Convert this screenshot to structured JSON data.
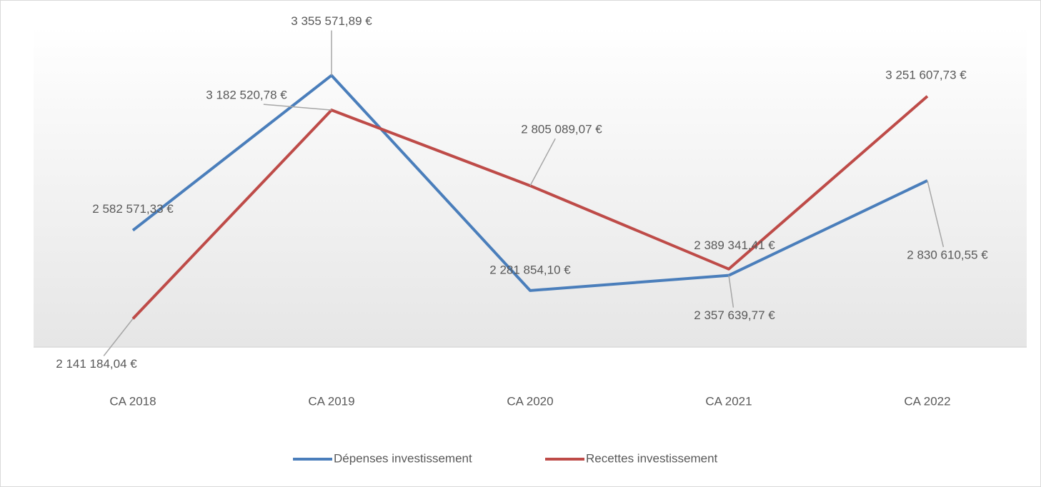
{
  "chart_data": {
    "type": "line",
    "categories": [
      "CA 2018",
      "CA 2019",
      "CA 2020",
      "CA 2021",
      "CA 2022"
    ],
    "series": [
      {
        "name": "Dépenses investissement",
        "color": "#4a7ebb",
        "values": [
          2582571.33,
          3355571.89,
          2281854.1,
          2357639.77,
          2830610.55
        ],
        "value_labels": [
          "2 582 571,33 €",
          "3 355 571,89 €",
          "2 281 854,10 €",
          "2 357 639,77 €",
          "2 830 610,55 €"
        ]
      },
      {
        "name": "Recettes investissement",
        "color": "#be4b48",
        "values": [
          2141184.04,
          3182520.78,
          2805089.07,
          2389341.41,
          3251607.73
        ],
        "value_labels": [
          "2 141 184,04 €",
          "3 182 520,78 €",
          "2 805 089,07 €",
          "2 389 341,41 €",
          "3 251 607,73 €"
        ]
      }
    ],
    "ylim": [
      2000000,
      3600000
    ],
    "legend": "bottom"
  }
}
